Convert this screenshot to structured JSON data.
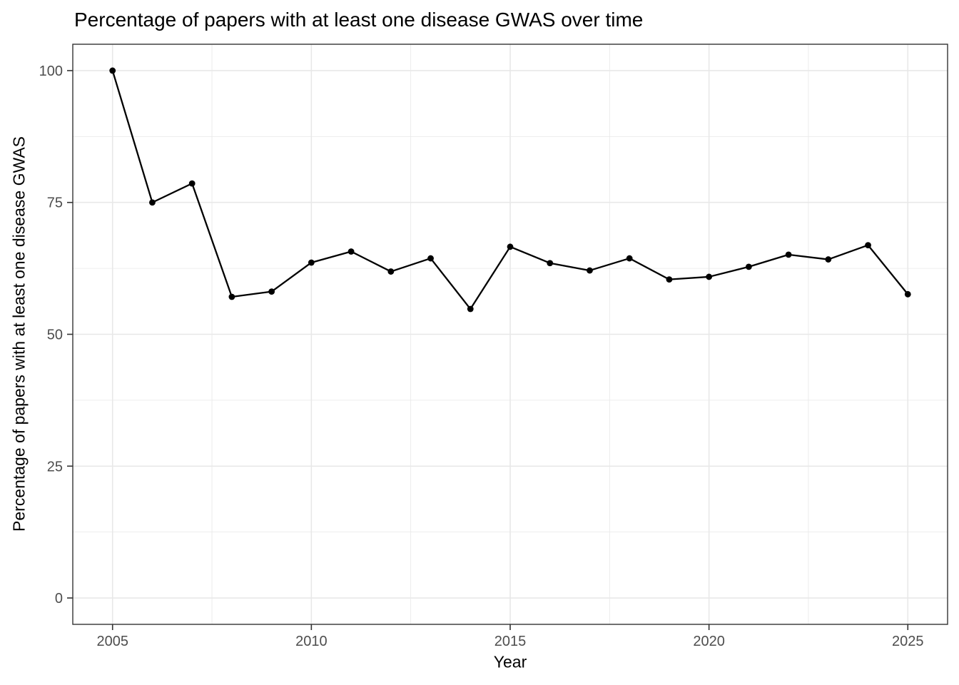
{
  "figure": {
    "title": "Percentage of papers with at least one disease GWAS over time",
    "x_axis_label": "Year",
    "y_axis_label": "Percentage of papers with at least one disease GWAS"
  },
  "chart_data": {
    "type": "line",
    "title": "Percentage of papers with at least one disease GWAS over time",
    "xlabel": "Year",
    "ylabel": "Percentage of papers with at least one disease GWAS",
    "x": [
      2005,
      2006,
      2007,
      2008,
      2009,
      2010,
      2011,
      2012,
      2013,
      2014,
      2015,
      2016,
      2017,
      2018,
      2019,
      2020,
      2021,
      2022,
      2023,
      2024,
      2025
    ],
    "values": [
      100,
      75,
      78.6,
      57.1,
      58.1,
      63.6,
      65.7,
      61.9,
      64.4,
      54.8,
      66.6,
      63.5,
      62.1,
      64.4,
      60.4,
      60.9,
      62.8,
      65.1,
      64.2,
      66.9,
      57.6
    ],
    "xlim": [
      2004,
      2026
    ],
    "ylim": [
      -5,
      105
    ],
    "x_ticks": [
      2005,
      2010,
      2015,
      2020,
      2025
    ],
    "y_ticks": [
      0,
      25,
      50,
      75,
      100
    ],
    "x_minor_gridlines": [
      2007.5,
      2012.5,
      2017.5,
      2022.5
    ],
    "y_minor_gridlines": [
      12.5,
      37.5,
      62.5,
      87.5
    ],
    "grid": true,
    "legend": "none",
    "styles": {
      "line_color": "#000000",
      "point_color": "#000000",
      "grid_color": "#e8e8e8",
      "panel_border_color": "#333333",
      "tick_color": "#333333",
      "tick_label_color": "#4d4d4d",
      "title_color": "#000000",
      "background": "#ffffff"
    }
  }
}
